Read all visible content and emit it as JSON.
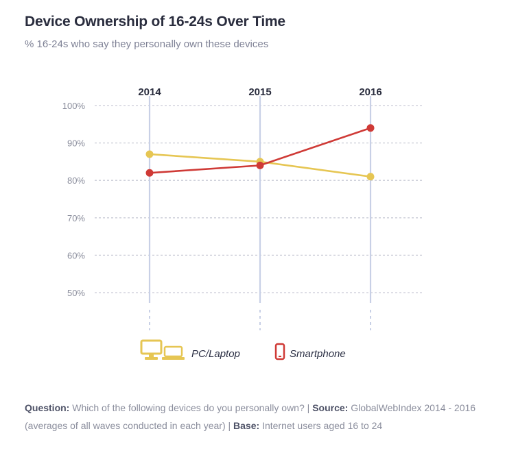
{
  "chart_data": {
    "type": "line",
    "title": "Device Ownership of 16-24s Over Time",
    "subtitle": "% 16-24s who say they personally own these devices",
    "categories": [
      "2014",
      "2015",
      "2016"
    ],
    "series": [
      {
        "name": "PC/Laptop",
        "values": [
          87,
          85,
          81
        ],
        "color": "#e6c653"
      },
      {
        "name": "Smartphone",
        "values": [
          82,
          84,
          94
        ],
        "color": "#cf3a36"
      }
    ],
    "y_ticks": [
      "100%",
      "90%",
      "80%",
      "70%",
      "60%",
      "50%"
    ],
    "y_tick_values": [
      100,
      90,
      80,
      70,
      60,
      50
    ],
    "ylim": [
      50,
      100
    ],
    "xlabel": "",
    "ylabel": "",
    "legend_position": "bottom",
    "grid": true,
    "icons": {
      "pc_laptop": "desktop-laptop-icon",
      "smartphone": "smartphone-icon"
    },
    "grid_color": "#c9cbd6",
    "axis_line_color": "#c8d0e6"
  },
  "footer": {
    "question_label": "Question:",
    "question_text": "Which of the following devices do you personally own?",
    "sep1": " | ",
    "source_label": "Source:",
    "source_text": "GlobalWebIndex 2014 - 2016 (averages of all waves conducted in each year)",
    "sep2": " | ",
    "base_label": "Base:",
    "base_text": "Internet users aged 16 to 24"
  }
}
